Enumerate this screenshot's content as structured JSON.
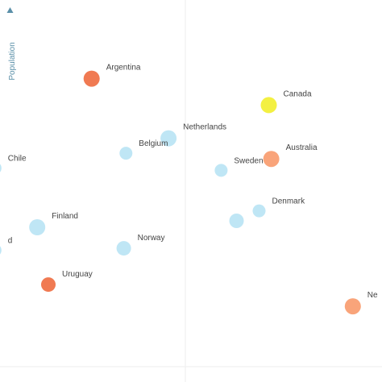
{
  "chart_data": {
    "type": "scatter",
    "ylabel": "Population",
    "xlabel": "",
    "colors": {
      "axis_label": "#5a8fa8",
      "axis_arrow": "#5a8fa8",
      "gridline": "#eeeeee",
      "light_blue": "#bfe6f5",
      "orange": "#f07a52",
      "light_orange": "#f9a47a",
      "yellow": "#f3f042"
    },
    "xlim": [
      0,
      100
    ],
    "ylim": [
      0,
      100
    ],
    "points": [
      {
        "label": "Argentina",
        "x": 22.0,
        "y": 79.4,
        "color": "#f07a52",
        "size": 10
      },
      {
        "label": "Canada",
        "x": 71.5,
        "y": 72.5,
        "color": "#f3f042",
        "size": 10
      },
      {
        "label": "Netherlands",
        "x": 43.5,
        "y": 63.8,
        "color": "#bfe6f5",
        "size": 10
      },
      {
        "label": "Belgium",
        "x": 31.6,
        "y": 59.9,
        "color": "#bfe6f5",
        "size": 8
      },
      {
        "label": "Australia",
        "x": 72.2,
        "y": 58.4,
        "color": "#f9a47a",
        "size": 10
      },
      {
        "label": "Sweden",
        "x": 58.2,
        "y": 55.4,
        "color": "#bfe6f5",
        "size": 8
      },
      {
        "label": "Chile",
        "x": -5.0,
        "y": 56.0,
        "color": "#bfe6f5",
        "size": 8
      },
      {
        "label": "Denmark",
        "x": 68.8,
        "y": 44.8,
        "color": "#bfe6f5",
        "size": 8
      },
      {
        "label": "",
        "x": 62.5,
        "y": 42.2,
        "color": "#bfe6f5",
        "size": 9
      },
      {
        "label": "Finland",
        "x": 6.8,
        "y": 40.5,
        "color": "#bfe6f5",
        "size": 10
      },
      {
        "label": "Norway",
        "x": 31.0,
        "y": 35.0,
        "color": "#bfe6f5",
        "size": 9
      },
      {
        "label": "d",
        "x": -5.0,
        "y": 34.5,
        "color": "#bfe6f5",
        "size": 8
      },
      {
        "label": "Uruguay",
        "x": 9.9,
        "y": 25.5,
        "color": "#f07a52",
        "size": 9
      },
      {
        "label": "Ne",
        "x": 95.0,
        "y": 19.8,
        "color": "#f9a47a",
        "size": 10
      }
    ],
    "grid": true,
    "legend": "none"
  }
}
